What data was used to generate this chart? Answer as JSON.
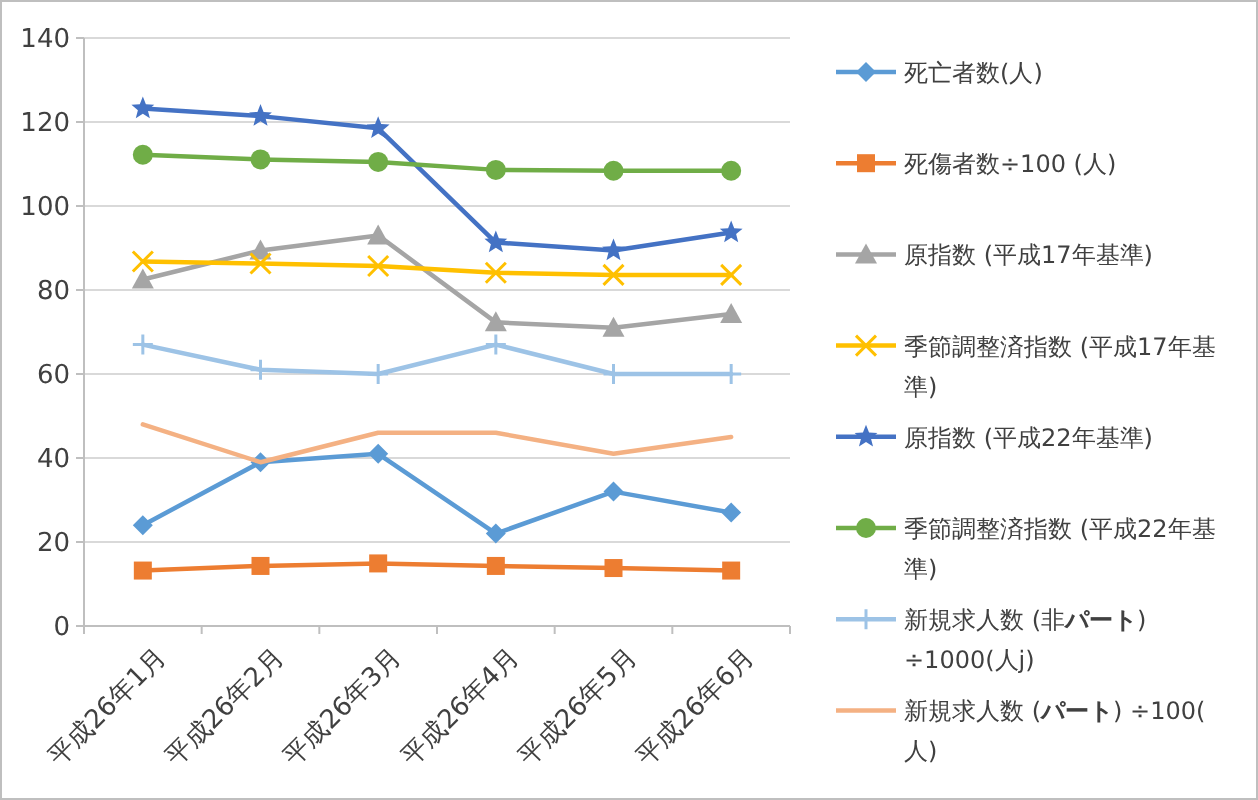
{
  "chart_data": {
    "type": "line",
    "categories": [
      "平成26年1月",
      "平成26年2月",
      "平成26年3月",
      "平成26年4月",
      "平成26年5月",
      "平成26年6月"
    ],
    "series": [
      {
        "name": "死亡者数(人)",
        "color": "#5b9bd5",
        "marker": "diamond",
        "values": [
          24,
          39,
          41,
          22,
          32,
          27
        ]
      },
      {
        "name": "死傷者数÷100 (人)",
        "color": "#ed7d31",
        "marker": "square",
        "values": [
          13.2,
          14.3,
          14.9,
          14.3,
          13.8,
          13.2
        ]
      },
      {
        "name": "原指数 (平成17年基準)",
        "color": "#a5a5a5",
        "marker": "triangle",
        "values": [
          82.5,
          89.4,
          93,
          72.3,
          71,
          74.3
        ]
      },
      {
        "name": "季節調整済指数 (平成17年基準)",
        "color": "#ffc000",
        "marker": "cross",
        "values": [
          86.8,
          86.3,
          85.7,
          84.1,
          83.6,
          83.6
        ]
      },
      {
        "name": "原指数 (平成22年基準)",
        "color": "#4472c4",
        "marker": "star",
        "values": [
          123.2,
          121.4,
          118.5,
          91.3,
          89.4,
          93.7
        ]
      },
      {
        "name": "季節調整済指数 (平成22年基準)",
        "color": "#70ad47",
        "marker": "circle",
        "values": [
          112.2,
          111.1,
          110.5,
          108.6,
          108.4,
          108.4
        ]
      },
      {
        "name": "新規求人数 (非**パート**) ÷1000(人j)",
        "color": "#9dc3e6",
        "marker": "plus",
        "values": [
          67,
          61,
          60,
          67,
          60,
          60
        ]
      },
      {
        "name": "新規求人数 (**パート**) ÷100(人)",
        "color": "#f4b183",
        "marker": "none",
        "values": [
          48,
          39,
          46,
          46,
          41,
          45
        ]
      }
    ],
    "ylim": [
      0,
      140
    ],
    "yticks": [
      0,
      20,
      40,
      60,
      80,
      100,
      120,
      140
    ],
    "grid": "y",
    "legend": "right"
  }
}
